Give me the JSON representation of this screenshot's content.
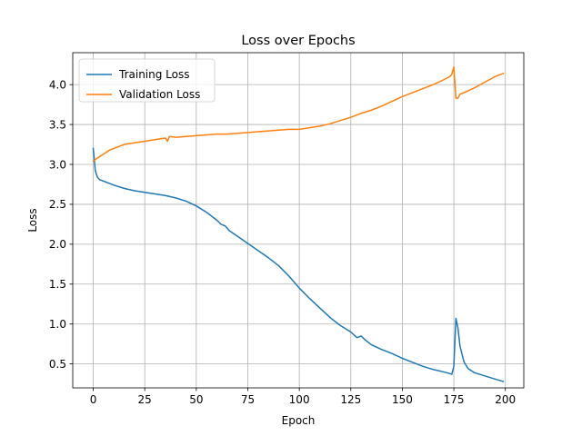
{
  "chart_data": {
    "type": "line",
    "title": "Loss over Epochs",
    "xlabel": "Epoch",
    "ylabel": "Loss",
    "xlim": [
      -9.95,
      208.95
    ],
    "ylim": [
      0.2,
      4.4
    ],
    "xticks": [
      0,
      25,
      50,
      75,
      100,
      125,
      150,
      175,
      200
    ],
    "yticks": [
      0.5,
      1.0,
      1.5,
      2.0,
      2.5,
      3.0,
      3.5,
      4.0
    ],
    "ytick_labels": [
      "0.5",
      "1.0",
      "1.5",
      "2.0",
      "2.5",
      "3.0",
      "3.5",
      "4.0"
    ],
    "grid": true,
    "legend_position": "upper-left",
    "series": [
      {
        "name": "Training Loss",
        "color": "#1f77b4",
        "points": [
          [
            0,
            3.2
          ],
          [
            1,
            2.92
          ],
          [
            2,
            2.84
          ],
          [
            3,
            2.81
          ],
          [
            5,
            2.79
          ],
          [
            8,
            2.76
          ],
          [
            10,
            2.74
          ],
          [
            15,
            2.7
          ],
          [
            20,
            2.67
          ],
          [
            25,
            2.65
          ],
          [
            30,
            2.63
          ],
          [
            35,
            2.61
          ],
          [
            40,
            2.58
          ],
          [
            45,
            2.54
          ],
          [
            50,
            2.48
          ],
          [
            55,
            2.4
          ],
          [
            60,
            2.3
          ],
          [
            62,
            2.25
          ],
          [
            64,
            2.23
          ],
          [
            66,
            2.17
          ],
          [
            70,
            2.1
          ],
          [
            75,
            2.01
          ],
          [
            80,
            1.92
          ],
          [
            85,
            1.83
          ],
          [
            90,
            1.73
          ],
          [
            95,
            1.6
          ],
          [
            100,
            1.45
          ],
          [
            105,
            1.32
          ],
          [
            110,
            1.2
          ],
          [
            115,
            1.08
          ],
          [
            120,
            0.98
          ],
          [
            125,
            0.9
          ],
          [
            128,
            0.83
          ],
          [
            130,
            0.85
          ],
          [
            132,
            0.8
          ],
          [
            135,
            0.74
          ],
          [
            140,
            0.68
          ],
          [
            145,
            0.63
          ],
          [
            150,
            0.57
          ],
          [
            155,
            0.52
          ],
          [
            160,
            0.47
          ],
          [
            165,
            0.43
          ],
          [
            170,
            0.4
          ],
          [
            173,
            0.38
          ],
          [
            174,
            0.37
          ],
          [
            175,
            0.47
          ],
          [
            176,
            1.07
          ],
          [
            177,
            0.95
          ],
          [
            178,
            0.72
          ],
          [
            180,
            0.52
          ],
          [
            182,
            0.44
          ],
          [
            185,
            0.39
          ],
          [
            190,
            0.35
          ],
          [
            195,
            0.31
          ],
          [
            199,
            0.28
          ]
        ]
      },
      {
        "name": "Validation Loss",
        "color": "#ff7f0e",
        "points": [
          [
            0,
            3.04
          ],
          [
            2,
            3.08
          ],
          [
            5,
            3.13
          ],
          [
            8,
            3.18
          ],
          [
            10,
            3.2
          ],
          [
            15,
            3.25
          ],
          [
            20,
            3.27
          ],
          [
            25,
            3.29
          ],
          [
            30,
            3.31
          ],
          [
            35,
            3.33
          ],
          [
            36,
            3.29
          ],
          [
            37,
            3.35
          ],
          [
            40,
            3.34
          ],
          [
            45,
            3.35
          ],
          [
            50,
            3.36
          ],
          [
            55,
            3.37
          ],
          [
            60,
            3.38
          ],
          [
            65,
            3.38
          ],
          [
            70,
            3.39
          ],
          [
            75,
            3.4
          ],
          [
            80,
            3.41
          ],
          [
            85,
            3.42
          ],
          [
            90,
            3.43
          ],
          [
            95,
            3.44
          ],
          [
            100,
            3.44
          ],
          [
            105,
            3.46
          ],
          [
            110,
            3.48
          ],
          [
            115,
            3.51
          ],
          [
            120,
            3.55
          ],
          [
            125,
            3.59
          ],
          [
            130,
            3.64
          ],
          [
            135,
            3.68
          ],
          [
            140,
            3.73
          ],
          [
            145,
            3.79
          ],
          [
            150,
            3.85
          ],
          [
            155,
            3.9
          ],
          [
            160,
            3.95
          ],
          [
            165,
            4.0
          ],
          [
            170,
            4.06
          ],
          [
            173,
            4.1
          ],
          [
            174,
            4.13
          ],
          [
            175,
            4.22
          ],
          [
            176,
            3.83
          ],
          [
            177,
            3.83
          ],
          [
            178,
            3.88
          ],
          [
            180,
            3.9
          ],
          [
            185,
            3.96
          ],
          [
            190,
            4.03
          ],
          [
            195,
            4.1
          ],
          [
            199,
            4.14
          ]
        ]
      }
    ]
  }
}
